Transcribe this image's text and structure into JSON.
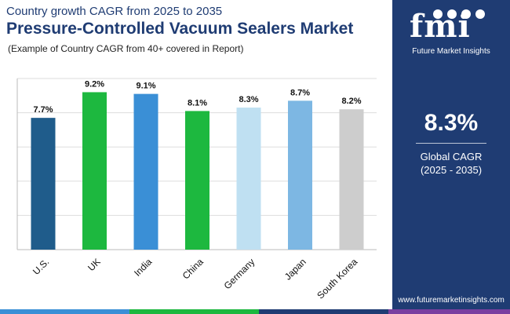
{
  "header": {
    "subtitle": "Country growth CAGR from 2025 to 2035",
    "title": "Pressure-Controlled Vacuum Sealers Market",
    "caption": "(Example of Country CAGR from 40+ covered in Report)"
  },
  "chart_data": {
    "type": "bar",
    "categories": [
      "U.S.",
      "UK",
      "India",
      "China",
      "Germany",
      "Japan",
      "South Korea"
    ],
    "values": [
      7.7,
      9.2,
      9.1,
      8.1,
      8.3,
      8.7,
      8.2
    ],
    "value_labels": [
      "7.7%",
      "9.2%",
      "9.1%",
      "8.1%",
      "8.3%",
      "8.7%",
      "8.2%"
    ],
    "colors": [
      "#1f5c8b",
      "#1db83f",
      "#3a8fd6",
      "#1db83f",
      "#bfe0f2",
      "#7db7e3",
      "#cdcdcd"
    ],
    "ylim": [
      0,
      10
    ],
    "grid": true,
    "title": "Pressure-Controlled Vacuum Sealers Market",
    "xlabel": "",
    "ylabel": ""
  },
  "side_panel": {
    "logo_text": "fmi",
    "logo_subtext": "Future Market Insights",
    "value": "8.3%",
    "label": "Global CAGR",
    "period": "(2025 - 2035)",
    "website": "www.futuremarketinsights.com",
    "background": "#1f3c73"
  },
  "stripe_colors": [
    "#3a8fd6",
    "#1db83f",
    "#1f3c73",
    "#7a3fa0"
  ]
}
